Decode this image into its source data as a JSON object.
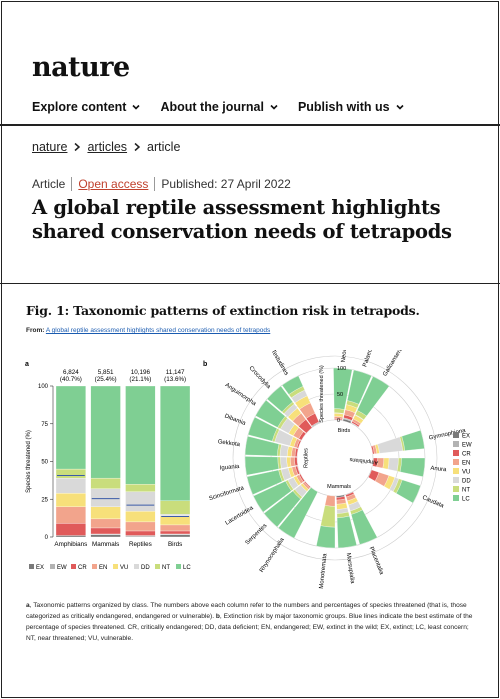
{
  "site": {
    "logo": "nature"
  },
  "nav": [
    {
      "label": "Explore content"
    },
    {
      "label": "About the journal"
    },
    {
      "label": "Publish with us"
    }
  ],
  "breadcrumb": {
    "items": [
      "nature",
      "articles",
      "article"
    ]
  },
  "meta": {
    "type": "Article",
    "access": "Open access",
    "published": "Published: 27 April 2022"
  },
  "article": {
    "title": "A global reptile assessment highlights shared conservation needs of tetrapods"
  },
  "figure": {
    "title": "Fig. 1: Taxonomic patterns of extinction risk in tetrapods.",
    "from_label": "From:",
    "from_link": "A global reptile assessment highlights shared conservation needs of tetrapods",
    "panel_a": "a",
    "panel_b": "b",
    "caption_a_label": "a",
    "caption_a": ", Taxonomic patterns organized by class. The numbers above each column refer to the numbers and percentages of species threatened (that is, those categorized as critically endangered, endangered or vulnerable).",
    "caption_b_label": "b",
    "caption_b": ", Extinction risk by major taxonomic groups. Blue lines indicate the best estimate of the percentage of species threatened. CR, critically endangered; DD, data deficient; EN, endangered; EW, extinct in the wild; EX, extinct; LC, least concern; NT, near threatened; VU, vulnerable."
  },
  "colors": {
    "EX": "#7a7a7a",
    "EW": "#b3b3b3",
    "CR": "#e05a5a",
    "EN": "#f2a48c",
    "VU": "#f7e07a",
    "DD": "#d9d9d9",
    "NT": "#c9dd7c",
    "LC": "#7fcf93",
    "line": "#3b5ba8"
  },
  "chart_data": [
    {
      "type": "bar",
      "stacked": true,
      "categories": [
        "Amphibians",
        "Mammals",
        "Reptiles",
        "Birds"
      ],
      "top_labels": [
        {
          "count": "6,824",
          "pct": "(40.7%)"
        },
        {
          "count": "5,851",
          "pct": "(25.4%)"
        },
        {
          "count": "10,196",
          "pct": "(21.1%)"
        },
        {
          "count": "11,147",
          "pct": "(13.6%)"
        }
      ],
      "best_estimate": [
        40.7,
        25.4,
        21.1,
        13.6
      ],
      "series": [
        {
          "name": "EX",
          "values": [
            1,
            1.5,
            0.5,
            1.5
          ]
        },
        {
          "name": "EW",
          "values": [
            0,
            0.5,
            0.5,
            0.5
          ]
        },
        {
          "name": "CR",
          "values": [
            8,
            4,
            3,
            2
          ]
        },
        {
          "name": "EN",
          "values": [
            11,
            6,
            6,
            4
          ]
        },
        {
          "name": "VU",
          "values": [
            9,
            8,
            7,
            6
          ]
        },
        {
          "name": "DD",
          "values": [
            10,
            12,
            13,
            1
          ]
        },
        {
          "name": "NT",
          "values": [
            6,
            7,
            5,
            9
          ]
        },
        {
          "name": "LC",
          "values": [
            55,
            61,
            65,
            76
          ]
        }
      ],
      "ylabel": "Species threatened (%)",
      "ylim": [
        0,
        100
      ],
      "yticks": [
        0,
        25,
        50,
        75,
        100
      ],
      "legend": [
        "EX",
        "EW",
        "CR",
        "EN",
        "VU",
        "DD",
        "NT",
        "LC"
      ]
    },
    {
      "type": "bar",
      "polar": true,
      "axis_label": "Species threatened (%)",
      "axis_ticks": [
        "0",
        "50",
        "100"
      ],
      "groups": [
        "Reptiles",
        "Birds",
        "Amphibians",
        "Mammals"
      ],
      "categories": [
        {
          "name": "Testudines",
          "group": "Reptiles",
          "values": [
            1,
            2,
            18,
            22,
            15,
            12,
            8,
            22
          ]
        },
        {
          "name": "Crocodylia",
          "group": "Reptiles",
          "values": [
            0,
            0,
            20,
            15,
            12,
            10,
            5,
            38
          ]
        },
        {
          "name": "Anguimorpha",
          "group": "Reptiles",
          "values": [
            0,
            0,
            6,
            12,
            10,
            18,
            6,
            48
          ]
        },
        {
          "name": "Dibamia",
          "group": "Reptiles",
          "values": [
            0,
            0,
            3,
            6,
            8,
            30,
            5,
            48
          ]
        },
        {
          "name": "Gekkota",
          "group": "Reptiles",
          "values": [
            0,
            0,
            4,
            7,
            8,
            14,
            5,
            62
          ]
        },
        {
          "name": "Iguania",
          "group": "Reptiles",
          "values": [
            0,
            0,
            5,
            8,
            7,
            12,
            5,
            63
          ]
        },
        {
          "name": "Scinciformata",
          "group": "Reptiles",
          "values": [
            0,
            1,
            4,
            7,
            7,
            14,
            5,
            62
          ]
        },
        {
          "name": "Lacertoidea",
          "group": "Reptiles",
          "values": [
            0,
            0,
            3,
            6,
            6,
            12,
            5,
            68
          ]
        },
        {
          "name": "Serpentes",
          "group": "Reptiles",
          "values": [
            0,
            0,
            2,
            4,
            5,
            14,
            5,
            70
          ]
        },
        {
          "name": "Rhynocephalia",
          "group": "Reptiles",
          "values": [
            0,
            0,
            0,
            0,
            0,
            0,
            0,
            100
          ]
        },
        {
          "name": "Neoaves",
          "group": "Birds",
          "values": [
            1,
            0,
            2,
            4,
            6,
            1,
            8,
            78
          ]
        },
        {
          "name": "Palaeognathae",
          "group": "Birds",
          "values": [
            4,
            2,
            6,
            10,
            10,
            0,
            8,
            60
          ]
        },
        {
          "name": "Galloanserae",
          "group": "Birds",
          "values": [
            1,
            1,
            3,
            5,
            8,
            1,
            9,
            72
          ]
        },
        {
          "name": "Gymnophiona",
          "group": "Amphibians",
          "values": [
            0,
            0,
            3,
            5,
            5,
            45,
            4,
            38
          ]
        },
        {
          "name": "Anura",
          "group": "Amphibians",
          "values": [
            1,
            0,
            8,
            12,
            10,
            18,
            6,
            45
          ]
        },
        {
          "name": "Caudata",
          "group": "Amphibians",
          "values": [
            1,
            0,
            15,
            20,
            12,
            8,
            7,
            37
          ]
        },
        {
          "name": "Placentalia",
          "group": "Mammals",
          "values": [
            1,
            0,
            4,
            8,
            8,
            12,
            7,
            60
          ]
        },
        {
          "name": "Marsupialia",
          "group": "Mammals",
          "values": [
            3,
            0,
            5,
            8,
            10,
            8,
            8,
            58
          ]
        },
        {
          "name": "Monotremata",
          "group": "Mammals",
          "values": [
            0,
            0,
            0,
            20,
            0,
            0,
            40,
            40
          ]
        }
      ],
      "legend": [
        "EX",
        "EW",
        "CR",
        "EN",
        "VU",
        "DD",
        "NT",
        "LC"
      ]
    }
  ]
}
